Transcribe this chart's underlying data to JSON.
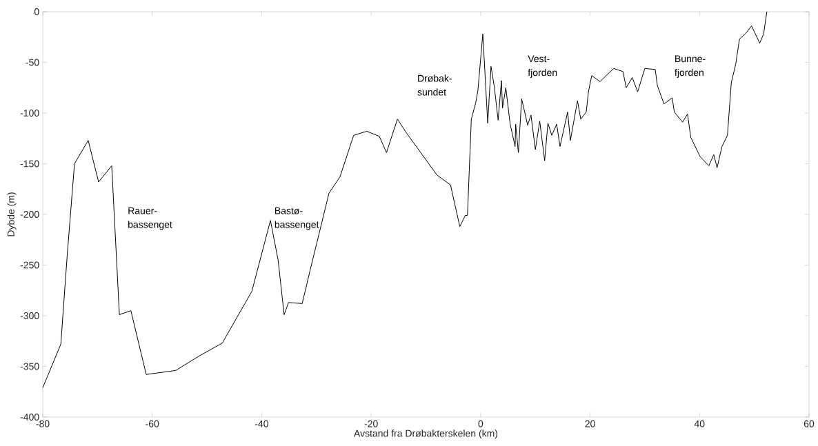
{
  "chart_data": {
    "type": "line",
    "xlabel": "Avstand fra Drøbakterskelen (km)",
    "ylabel": "Dybde (m)",
    "annotations": [
      "Rauer- bassenget",
      "Bastø- bassenget",
      "Drøbak- sundet",
      "Vest- fjorden",
      "Bunne- fjorden"
    ],
    "xlim": [
      -80,
      60
    ],
    "ylim": [
      -400,
      0
    ],
    "xticks": [
      -80,
      -60,
      -40,
      -20,
      0,
      20,
      40,
      60
    ],
    "yticks": [
      -400,
      -350,
      -300,
      -250,
      -200,
      -150,
      -100,
      -50,
      0
    ],
    "grid": false,
    "marker": "none",
    "line_style": "solid",
    "series": [
      {
        "color": "#000000",
        "x": [
          -80,
          -76.7,
          -75.5,
          -74.2,
          -71.7,
          -69.8,
          -67.4,
          -66,
          -63.9,
          -61.1,
          -55.7,
          -51.5,
          -47.2,
          -41.8,
          -38.4,
          -37,
          -35.9,
          -35.1,
          -32.6,
          -31.1,
          -27.7,
          -25.7,
          -23.2,
          -20.8,
          -18.5,
          -17.2,
          -15.2,
          -13.5,
          -8.0,
          -5.5,
          -3.8,
          -2.8,
          -2.4,
          -1.7,
          -0.9,
          -0.5,
          0.4,
          1.3,
          1.9,
          2.5,
          3.2,
          3.8,
          4.0,
          4.6,
          5.4,
          6.3,
          6.4,
          6.9,
          7.5,
          8.6,
          9.2,
          10.0,
          10.8,
          11.7,
          12.3,
          13.0,
          13.9,
          14.5,
          15.9,
          16.4,
          17.7,
          18.3,
          19.3,
          19.7,
          20.3,
          21.8,
          24.3,
          26.0,
          26.6,
          27.7,
          28.7,
          30.0,
          31.9,
          32.3,
          33.5,
          35.0,
          35.4,
          36.9,
          37.8,
          38.4,
          40.1,
          41.7,
          42.6,
          43.2,
          44.1,
          45.1,
          45.8,
          46.6,
          47.3,
          48.5,
          49.5,
          51.0,
          51.7,
          52.3
        ],
        "values": [
          -371,
          -328,
          -238,
          -150,
          -127,
          -168,
          -152,
          -299,
          -295,
          -358,
          -354,
          -340,
          -327,
          -276,
          -206,
          -245,
          -299,
          -287,
          -288,
          -254,
          -179,
          -163,
          -122,
          -118,
          -123,
          -139,
          -106,
          -120,
          -161,
          -171,
          -212,
          -201,
          -201,
          -106,
          -90,
          -78,
          -22,
          -110,
          -54,
          -74,
          -107,
          -68,
          -95,
          -75,
          -111,
          -133,
          -111,
          -139,
          -86,
          -112,
          -102,
          -136,
          -108,
          -147,
          -110,
          -122,
          -111,
          -133,
          -99,
          -127,
          -88,
          -106,
          -99,
          -79,
          -63,
          -69,
          -56,
          -59,
          -75,
          -65,
          -79,
          -56,
          -57,
          -73,
          -91,
          -85,
          -99,
          -109,
          -101,
          -124,
          -143,
          -152,
          -141,
          -154,
          -133,
          -122,
          -70,
          -52,
          -27,
          -21,
          -14,
          -31,
          -22,
          0
        ]
      }
    ]
  }
}
